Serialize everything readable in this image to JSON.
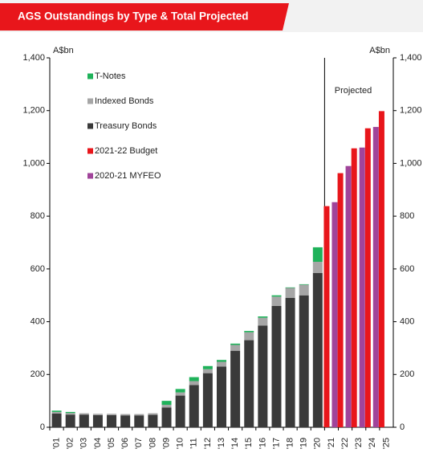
{
  "chart_data": {
    "type": "bar",
    "title": "AGS Outstandings by Type & Total Projected",
    "y_label": "A$bn",
    "y2_label": "A$bn",
    "annotation": "Projected",
    "categories": [
      "'01",
      "'02",
      "'03",
      "'04",
      "'05",
      "'06",
      "'07",
      "'08",
      "'09",
      "'10",
      "'11",
      "'12",
      "'13",
      "'14",
      "'15",
      "'16",
      "'17",
      "'18",
      "'19",
      "'20",
      "'21",
      "'22",
      "'23",
      "'24",
      "'25"
    ],
    "series": [
      {
        "name": "Treasury Bonds",
        "color": "#3a3a3a",
        "values": [
          52,
          48,
          48,
          46,
          46,
          45,
          45,
          47,
          75,
          120,
          160,
          205,
          230,
          290,
          330,
          385,
          460,
          490,
          500,
          585,
          null,
          null,
          null,
          null,
          null
        ]
      },
      {
        "name": "Indexed Bonds",
        "color": "#a6a6a6",
        "values": [
          6,
          6,
          5,
          5,
          5,
          5,
          5,
          6,
          10,
          12,
          15,
          15,
          18,
          22,
          30,
          30,
          35,
          38,
          40,
          42,
          null,
          null,
          null,
          null,
          null
        ]
      },
      {
        "name": "T-Notes",
        "color": "#1fb25a",
        "values": [
          5,
          4,
          0,
          0,
          0,
          0,
          0,
          0,
          15,
          13,
          15,
          12,
          7,
          5,
          5,
          5,
          5,
          2,
          2,
          55,
          null,
          null,
          null,
          null,
          null
        ]
      },
      {
        "name": "2021-22 Budget",
        "color": "#e8161b",
        "values": [
          null,
          null,
          null,
          null,
          null,
          null,
          null,
          null,
          null,
          null,
          null,
          null,
          null,
          null,
          null,
          null,
          null,
          null,
          null,
          null,
          838,
          963,
          1057,
          1133,
          1198
        ]
      },
      {
        "name": "2020-21 MYFEO",
        "color": "#a0449a",
        "values": [
          null,
          null,
          null,
          null,
          null,
          null,
          null,
          null,
          null,
          null,
          null,
          null,
          null,
          null,
          null,
          null,
          null,
          null,
          null,
          null,
          853,
          990,
          1060,
          1138,
          null
        ]
      }
    ],
    "ylim": [
      0,
      1400
    ],
    "yticks": [
      0,
      200,
      400,
      600,
      800,
      {
        "value": 1000,
        "label": "1,000"
      },
      {
        "value": 1200,
        "label": "1,200"
      },
      {
        "value": 1400,
        "label": "1,400"
      }
    ],
    "y2lim": [
      0,
      1400
    ],
    "y2ticks": [
      0,
      200,
      400,
      600,
      800,
      {
        "value": 1000,
        "label": "1,000"
      },
      {
        "value": 1200,
        "label": "1,200"
      },
      {
        "value": 1400,
        "label": "1,400"
      }
    ]
  }
}
